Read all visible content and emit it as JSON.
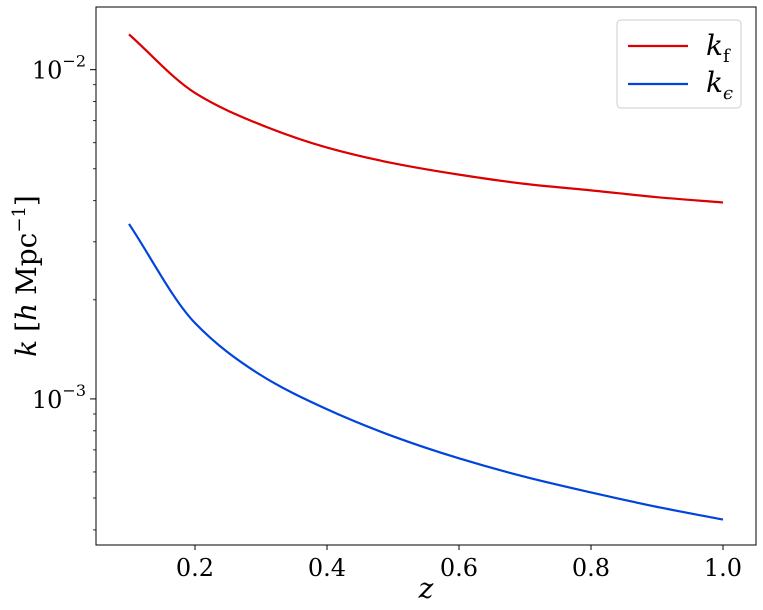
{
  "chart_data": {
    "type": "line",
    "title": "",
    "xlabel": "z",
    "ylabel": "k [h Mpc⁻¹]",
    "ylabel_parts": {
      "var": "k",
      "open": "[",
      "h": "h",
      "unit": "Mpc",
      "exp": "−1",
      "close": "]"
    },
    "xlim": [
      0.05,
      1.05
    ],
    "ylim": [
      0.00036,
      0.0155
    ],
    "yscale": "log",
    "grid": false,
    "legend_position": "top-right",
    "x_ticks": [
      0.2,
      0.4,
      0.6,
      0.8,
      1.0
    ],
    "x_tick_labels": [
      "0.2",
      "0.4",
      "0.6",
      "0.8",
      "1.0"
    ],
    "y_ticks": [
      0.01,
      0.001
    ],
    "y_tick_labels": [
      {
        "base": "10",
        "exp": "−2"
      },
      {
        "base": "10",
        "exp": "−3"
      }
    ],
    "series": [
      {
        "name": "k_f",
        "label_main": "k",
        "label_sub": "f",
        "color": "#dd0000",
        "x": [
          0.1,
          0.2,
          0.3,
          0.4,
          0.5,
          0.6,
          0.7,
          0.8,
          0.9,
          1.0
        ],
        "y": [
          0.0128,
          0.0085,
          0.0068,
          0.0058,
          0.0052,
          0.0048,
          0.0045,
          0.0043,
          0.0041,
          0.00395
        ]
      },
      {
        "name": "k_epsilon",
        "label_main": "k",
        "label_sub": "ϵ",
        "color": "#0044dd",
        "x": [
          0.1,
          0.2,
          0.3,
          0.4,
          0.5,
          0.6,
          0.7,
          0.8,
          0.9,
          1.0
        ],
        "y": [
          0.0034,
          0.0017,
          0.00118,
          0.00093,
          0.00077,
          0.00066,
          0.00058,
          0.00052,
          0.00047,
          0.00043
        ]
      }
    ]
  }
}
